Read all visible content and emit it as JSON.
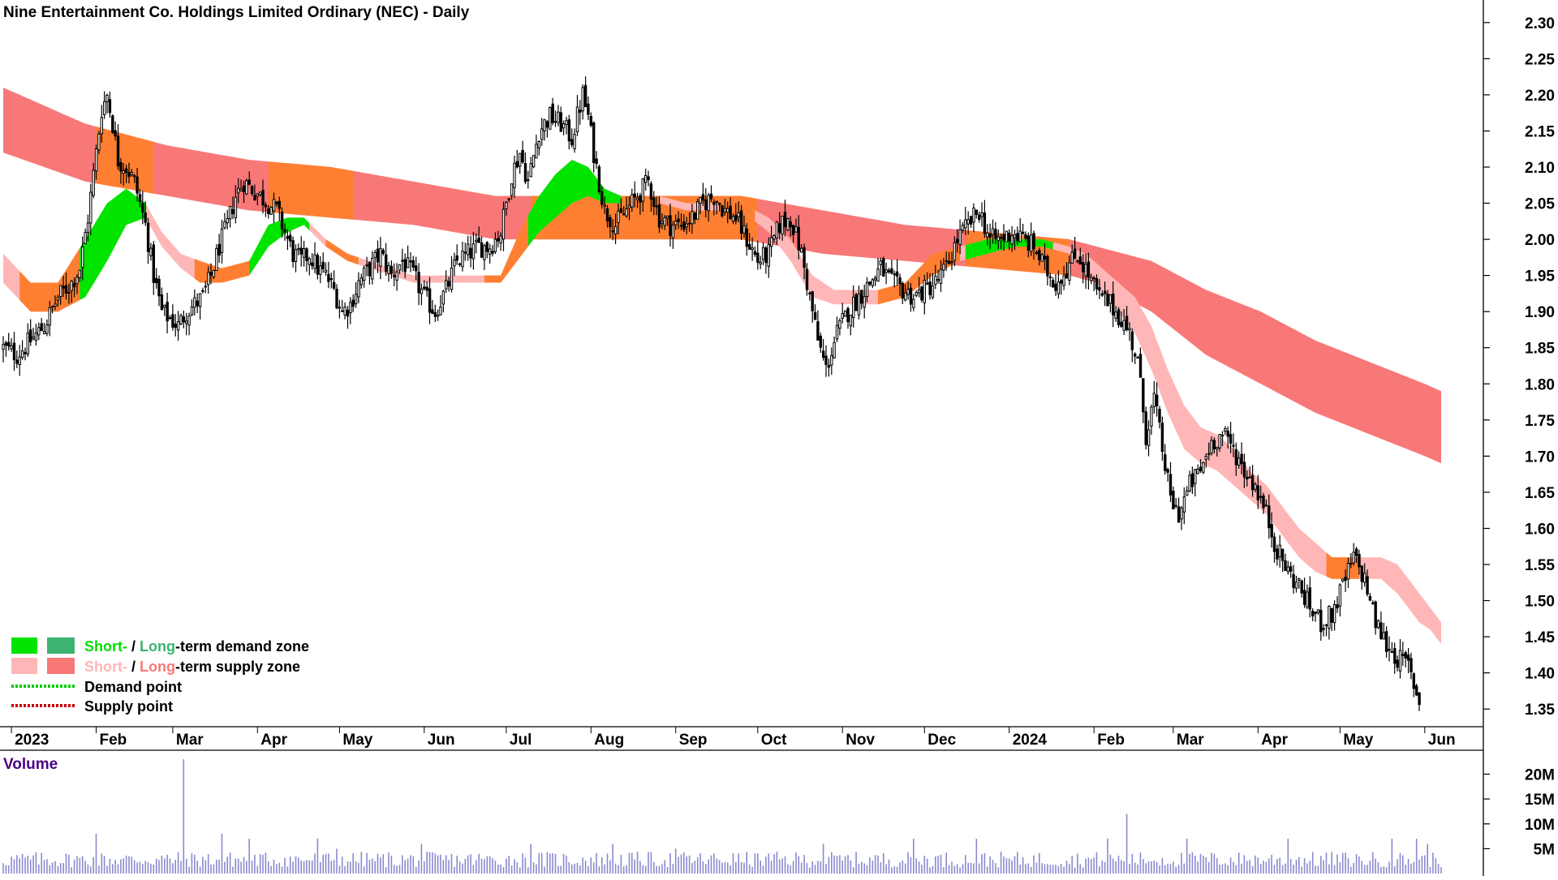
{
  "chart_data": {
    "type": "candlestick",
    "title": "Nine Entertainment Co. Holdings Limited Ordinary (NEC) - Daily",
    "y_ticks": [
      "2.30",
      "2.25",
      "2.20",
      "2.15",
      "2.10",
      "2.05",
      "2.00",
      "1.95",
      "1.90",
      "1.85",
      "1.80",
      "1.75",
      "1.70",
      "1.65",
      "1.60",
      "1.55",
      "1.50",
      "1.45",
      "1.40",
      "1.35"
    ],
    "ylim": [
      1.33,
      2.32
    ],
    "x_labels": [
      "2023",
      "Feb",
      "Mar",
      "Apr",
      "May",
      "Jun",
      "Jul",
      "Aug",
      "Sep",
      "Oct",
      "Nov",
      "Dec",
      "2024",
      "Feb",
      "Mar",
      "Apr",
      "May",
      "Jun"
    ],
    "x_label_days": [
      3,
      34,
      62,
      93,
      123,
      154,
      184,
      215,
      246,
      276,
      307,
      337,
      368,
      399,
      428,
      459,
      489,
      520
    ],
    "day_span": [
      0,
      526
    ],
    "price_anchors": {
      "day": [
        0,
        5,
        10,
        15,
        20,
        25,
        28,
        31,
        34,
        36,
        38,
        40,
        42,
        45,
        48,
        52,
        55,
        58,
        61,
        64,
        67,
        70,
        73,
        76,
        79,
        82,
        85,
        88,
        91,
        94,
        97,
        100,
        103,
        106,
        109,
        112,
        115,
        118,
        121,
        124,
        127,
        130,
        134,
        138,
        142,
        146,
        150,
        154,
        158,
        162,
        166,
        170,
        174,
        178,
        182,
        186,
        189,
        192,
        196,
        200,
        204,
        208,
        212,
        214,
        216,
        218,
        220,
        224,
        228,
        232,
        236,
        240,
        244,
        248,
        252,
        256,
        260,
        264,
        268,
        272,
        276,
        280,
        284,
        288,
        292,
        295,
        298,
        301,
        305,
        309,
        313,
        317,
        321,
        325,
        329,
        333,
        337,
        341,
        345,
        349,
        353,
        357,
        361,
        365,
        369,
        373,
        377,
        381,
        385,
        389,
        393,
        397,
        401,
        405,
        409,
        412,
        415,
        418,
        421,
        424,
        427,
        430,
        434,
        438,
        442,
        446,
        450,
        454,
        458,
        462,
        466,
        470,
        474,
        478,
        482,
        486,
        490,
        494,
        498,
        502,
        506,
        510,
        514,
        518,
        522,
        526
      ],
      "close": [
        1.85,
        1.84,
        1.86,
        1.88,
        1.92,
        1.94,
        1.96,
        2.03,
        2.12,
        2.18,
        2.2,
        2.16,
        2.11,
        2.1,
        2.08,
        2.02,
        1.95,
        1.9,
        1.89,
        1.88,
        1.9,
        1.91,
        1.92,
        1.95,
        1.99,
        2.02,
        2.06,
        2.08,
        2.07,
        2.06,
        2.05,
        2.04,
        2.01,
        1.98,
        1.97,
        1.98,
        1.96,
        1.95,
        1.93,
        1.9,
        1.91,
        1.94,
        1.96,
        1.98,
        1.95,
        1.97,
        1.95,
        1.92,
        1.9,
        1.93,
        1.97,
        1.98,
        1.99,
        1.99,
        2.01,
        2.09,
        2.12,
        2.08,
        2.15,
        2.17,
        2.16,
        2.14,
        2.2,
        2.17,
        2.12,
        2.08,
        2.04,
        2.02,
        2.04,
        2.06,
        2.08,
        2.03,
        2.02,
        2.02,
        2.03,
        2.05,
        2.06,
        2.04,
        2.03,
        2.0,
        1.97,
        1.98,
        2.02,
        2.03,
        1.98,
        1.92,
        1.86,
        1.82,
        1.87,
        1.9,
        1.92,
        1.94,
        1.96,
        1.94,
        1.93,
        1.92,
        1.93,
        1.94,
        1.96,
        2.0,
        2.02,
        2.04,
        2.0,
        2.0,
        2.01,
        2.0,
        1.99,
        1.96,
        1.94,
        1.96,
        1.98,
        1.95,
        1.92,
        1.91,
        1.89,
        1.87,
        1.83,
        1.73,
        1.78,
        1.71,
        1.64,
        1.62,
        1.66,
        1.68,
        1.72,
        1.73,
        1.71,
        1.68,
        1.66,
        1.62,
        1.57,
        1.54,
        1.52,
        1.49,
        1.47,
        1.48,
        1.52,
        1.56,
        1.53,
        1.47,
        1.44,
        1.42,
        1.41,
        1.36
      ]
    },
    "bands": {
      "long_supply": {
        "day": [
          0,
          30,
          60,
          90,
          120,
          150,
          180,
          210,
          240,
          270,
          300,
          330,
          360,
          390,
          400,
          420,
          440,
          460,
          480,
          500,
          520,
          526
        ],
        "upper": [
          2.21,
          2.16,
          2.13,
          2.11,
          2.1,
          2.08,
          2.06,
          2.06,
          2.06,
          2.06,
          2.04,
          2.02,
          2.01,
          2.0,
          1.99,
          1.97,
          1.93,
          1.9,
          1.86,
          1.83,
          1.8,
          1.79
        ],
        "lower": [
          2.12,
          2.08,
          2.06,
          2.04,
          2.03,
          2.02,
          2.0,
          2.0,
          2.0,
          2.0,
          1.98,
          1.97,
          1.96,
          1.95,
          1.94,
          1.9,
          1.84,
          1.8,
          1.76,
          1.73,
          1.7,
          1.69
        ]
      },
      "long_supply_orange_segments": [
        [
          34,
          55
        ],
        [
          97,
          128
        ],
        [
          193,
          226
        ],
        [
          226,
          276
        ],
        [
          352,
          390
        ]
      ],
      "short_band": {
        "day": [
          0,
          10,
          20,
          30,
          38,
          45,
          52,
          58,
          65,
          72,
          80,
          90,
          97,
          104,
          110,
          118,
          126,
          134,
          142,
          150,
          158,
          166,
          174,
          182,
          190,
          196,
          202,
          208,
          214,
          220,
          226,
          232,
          240,
          250,
          260,
          270,
          280,
          288,
          296,
          304,
          312,
          320,
          330,
          340,
          350,
          360,
          370,
          380,
          390,
          396,
          402,
          408,
          414,
          420,
          426,
          432,
          438,
          444,
          450,
          456,
          462,
          468,
          474,
          480,
          486,
          492,
          498,
          504,
          510,
          514,
          518,
          522,
          526
        ],
        "upper": [
          1.98,
          1.94,
          1.94,
          2.0,
          2.05,
          2.07,
          2.05,
          2.01,
          1.98,
          1.97,
          1.96,
          1.97,
          2.02,
          2.03,
          2.03,
          2.0,
          1.98,
          1.97,
          1.96,
          1.95,
          1.95,
          1.95,
          1.95,
          1.95,
          2.02,
          2.06,
          2.09,
          2.11,
          2.1,
          2.07,
          2.06,
          2.06,
          2.06,
          2.05,
          2.05,
          2.05,
          2.03,
          2.0,
          1.95,
          1.93,
          1.93,
          1.93,
          1.94,
          1.98,
          1.99,
          2.0,
          2.0,
          2.0,
          1.99,
          1.98,
          1.96,
          1.94,
          1.92,
          1.88,
          1.82,
          1.77,
          1.74,
          1.73,
          1.71,
          1.68,
          1.66,
          1.63,
          1.6,
          1.58,
          1.56,
          1.56,
          1.56,
          1.56,
          1.55,
          1.53,
          1.51,
          1.49,
          1.47
        ],
        "lower": [
          1.94,
          1.9,
          1.9,
          1.92,
          1.97,
          2.02,
          2.03,
          1.99,
          1.96,
          1.94,
          1.94,
          1.95,
          1.99,
          2.01,
          2.02,
          1.99,
          1.97,
          1.96,
          1.95,
          1.94,
          1.94,
          1.94,
          1.94,
          1.94,
          1.98,
          2.01,
          2.03,
          2.05,
          2.06,
          2.05,
          2.05,
          2.05,
          2.05,
          2.04,
          2.04,
          2.04,
          2.01,
          1.97,
          1.92,
          1.91,
          1.91,
          1.91,
          1.92,
          1.95,
          1.97,
          1.98,
          1.99,
          1.99,
          1.98,
          1.96,
          1.93,
          1.9,
          1.87,
          1.82,
          1.76,
          1.71,
          1.69,
          1.68,
          1.66,
          1.64,
          1.62,
          1.59,
          1.56,
          1.54,
          1.53,
          1.53,
          1.53,
          1.53,
          1.51,
          1.49,
          1.47,
          1.46,
          1.44
        ],
        "orange_segments": [
          [
            6,
            28
          ],
          [
            70,
            90
          ],
          [
            118,
            130
          ],
          [
            176,
            192
          ],
          [
            224,
            240
          ],
          [
            262,
            275
          ],
          [
            320,
            350
          ],
          [
            484,
            496
          ]
        ],
        "green_segments": [
          [
            28,
            52
          ],
          [
            90,
            112
          ],
          [
            192,
            226
          ],
          [
            352,
            384
          ]
        ]
      }
    },
    "legend": {
      "entries": [
        {
          "short": "Short-",
          "sep": " / ",
          "long": "Long",
          "rest": "-term demand zone",
          "short_color": "#00e400",
          "long_color": "#3cb371"
        },
        {
          "short": "Short-",
          "sep": " / ",
          "long": "Long",
          "rest": "-term supply zone",
          "short_color": "#ffb6b6",
          "long_color": "#f87878"
        },
        {
          "label": "Demand point",
          "color": "#00cc00"
        },
        {
          "label": "Supply point",
          "color": "#cc0000"
        }
      ]
    },
    "volume": {
      "title": "Volume",
      "y_ticks": [
        "20M",
        "15M",
        "10M",
        "5M"
      ],
      "tick_values": [
        20,
        15,
        10,
        5
      ],
      "ylim": [
        0,
        24
      ],
      "spikes": [
        [
          66,
          23
        ],
        [
          34,
          8
        ],
        [
          80,
          8
        ],
        [
          90,
          7
        ],
        [
          115,
          7
        ],
        [
          122,
          5
        ],
        [
          153,
          6
        ],
        [
          193,
          6
        ],
        [
          223,
          6
        ],
        [
          246,
          5
        ],
        [
          300,
          6
        ],
        [
          333,
          7
        ],
        [
          356,
          7
        ],
        [
          404,
          7
        ],
        [
          411,
          12
        ],
        [
          433,
          7
        ],
        [
          470,
          7
        ],
        [
          508,
          7
        ],
        [
          517,
          7
        ],
        [
          521,
          6
        ]
      ]
    },
    "colors": {
      "long_supply": "#f87878",
      "short_supply": "#ffb6b6",
      "orange": "#ff7f32",
      "green": "#00e400",
      "volume": "#8a8ad0",
      "title": "#000000",
      "volume_title": "#4b0082"
    }
  }
}
